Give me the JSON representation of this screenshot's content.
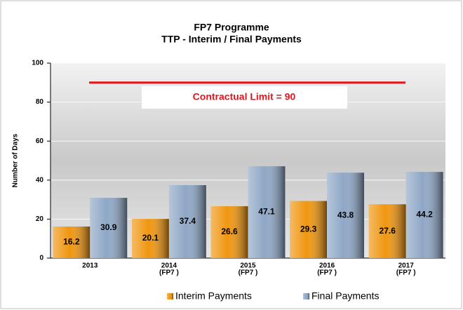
{
  "chart_data": {
    "type": "bar",
    "title": [
      "FP7 Programme",
      "TTP - Interim / Final Payments"
    ],
    "y_label": "Number of Days",
    "categories": [
      [
        "2013"
      ],
      [
        "2014",
        "(FP7 )"
      ],
      [
        "2015",
        "(FP7 )"
      ],
      [
        "2016",
        "(FP7 )"
      ],
      [
        "2017",
        "(FP7 )"
      ]
    ],
    "series": [
      {
        "name": "Interim Payments",
        "color": "#f0960f",
        "values": [
          16.2,
          20.1,
          26.6,
          29.3,
          27.6
        ]
      },
      {
        "name": "Final Payments",
        "color": "#8ea7c6",
        "values": [
          30.9,
          37.4,
          47.1,
          43.8,
          44.2
        ]
      }
    ],
    "annotation": {
      "text": "Contractual Limit = 90",
      "value": 90,
      "color": "#e8141b"
    },
    "ylim": [
      0,
      100
    ],
    "yticks": [
      0,
      20,
      40,
      60,
      80,
      100
    ],
    "grid": true,
    "legend": "bottom"
  }
}
